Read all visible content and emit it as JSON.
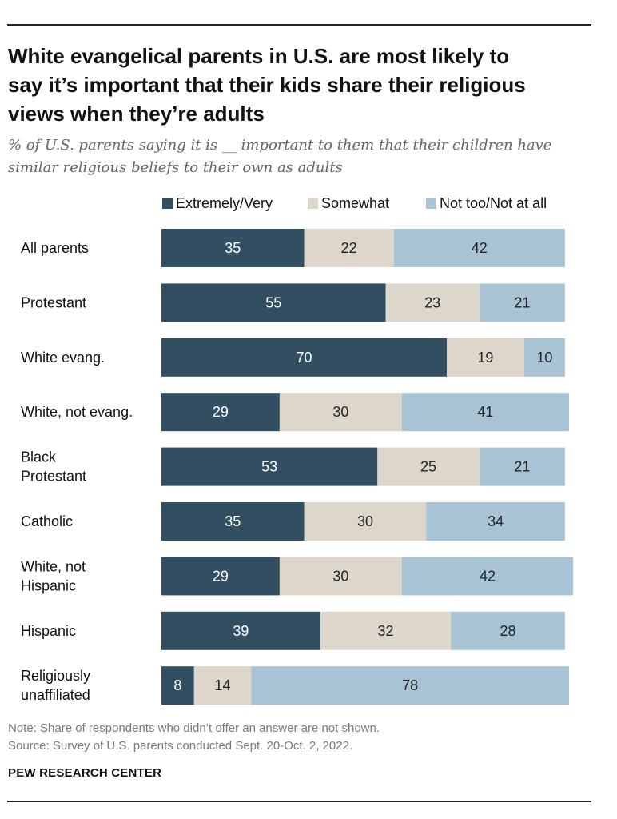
{
  "header": {
    "title": "White evangelical parents in U.S. are most likely to\nsay it’s important that their kids share their religious\nviews when they’re adults",
    "subtitle": "% of U.S. parents saying it is __ important to them that their children have\nsimilar religious beliefs to their own as adults"
  },
  "footer": {
    "note": "Note: Share of respondents who didn’t offer an answer are not shown.",
    "source": "Source: Survey of U.S. parents conducted Sept. 20-Oct. 2, 2022.",
    "brand": "PEW RESEARCH CENTER"
  },
  "colors": {
    "extremely_very": "#324f61",
    "somewhat": "#ddd7cb",
    "not_too": "#a8c4d4"
  },
  "chart_data": {
    "type": "bar",
    "orientation": "horizontal",
    "stacked": true,
    "grid": false,
    "legend_position": "top",
    "categories": [
      [
        "All parents"
      ],
      [
        "Protestant"
      ],
      [
        "White evang."
      ],
      [
        "White, not evang."
      ],
      [
        "Black",
        "Protestant"
      ],
      [
        "Catholic"
      ],
      [
        "White, not",
        "Hispanic"
      ],
      [
        "Hispanic"
      ],
      [
        "Religiously",
        "unaffiliated"
      ]
    ],
    "series": [
      {
        "name": "Extremely/Very",
        "color": "#324f61",
        "label_color": "#ffffff",
        "values": [
          35,
          55,
          70,
          29,
          53,
          35,
          29,
          39,
          8
        ]
      },
      {
        "name": "Somewhat",
        "color": "#ddd7cb",
        "label_color": "#222222",
        "values": [
          22,
          23,
          19,
          30,
          25,
          30,
          30,
          32,
          14
        ]
      },
      {
        "name": "Not too/Not at all",
        "color": "#a8c4d4",
        "label_color": "#222222",
        "values": [
          42,
          21,
          10,
          41,
          21,
          34,
          42,
          28,
          78
        ]
      }
    ]
  }
}
